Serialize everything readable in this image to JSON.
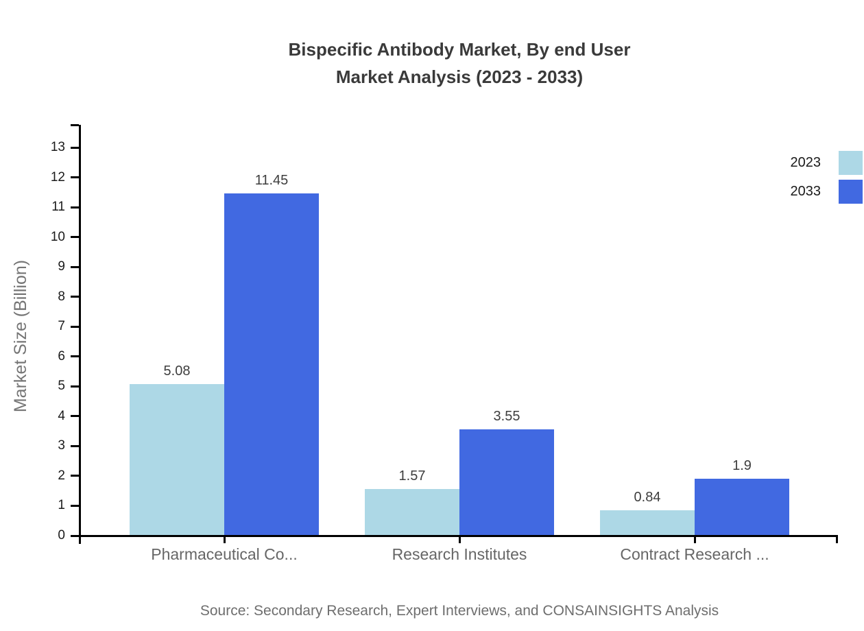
{
  "title": {
    "line1": "Bispecific Antibody Market, By end User",
    "line2": "Market Analysis (2023 - 2033)"
  },
  "source_note": "Source: Secondary Research, Expert Interviews, and CONSAINSIGHTS Analysis",
  "legend": {
    "items": [
      {
        "label": "2023",
        "color": "#ADD8E6"
      },
      {
        "label": "2033",
        "color": "#4169E1"
      }
    ]
  },
  "chart_data": {
    "type": "bar",
    "title": "Bispecific Antibody Market, By end User Market Analysis (2023 - 2033)",
    "categories": [
      "Pharmaceutical Co...",
      "Research Institutes",
      "Contract Research ..."
    ],
    "series": [
      {
        "name": "2023",
        "color": "#ADD8E6",
        "values": [
          5.08,
          1.57,
          0.84
        ],
        "labels": [
          "5.08",
          "1.57",
          "0.84"
        ]
      },
      {
        "name": "2033",
        "color": "#4169E1",
        "values": [
          11.45,
          3.55,
          1.9
        ],
        "labels": [
          "11.45",
          "3.55",
          "1.9"
        ]
      }
    ],
    "xlabel": "",
    "ylabel": "Market Size (Billion)",
    "ylim": [
      0,
      13
    ],
    "yticks": [
      0,
      1,
      2,
      3,
      4,
      5,
      6,
      7,
      8,
      9,
      10,
      11,
      12,
      13
    ],
    "grid": false,
    "legend_position": "top-right",
    "axis_color": "#000000",
    "value_labels_shown": true
  }
}
